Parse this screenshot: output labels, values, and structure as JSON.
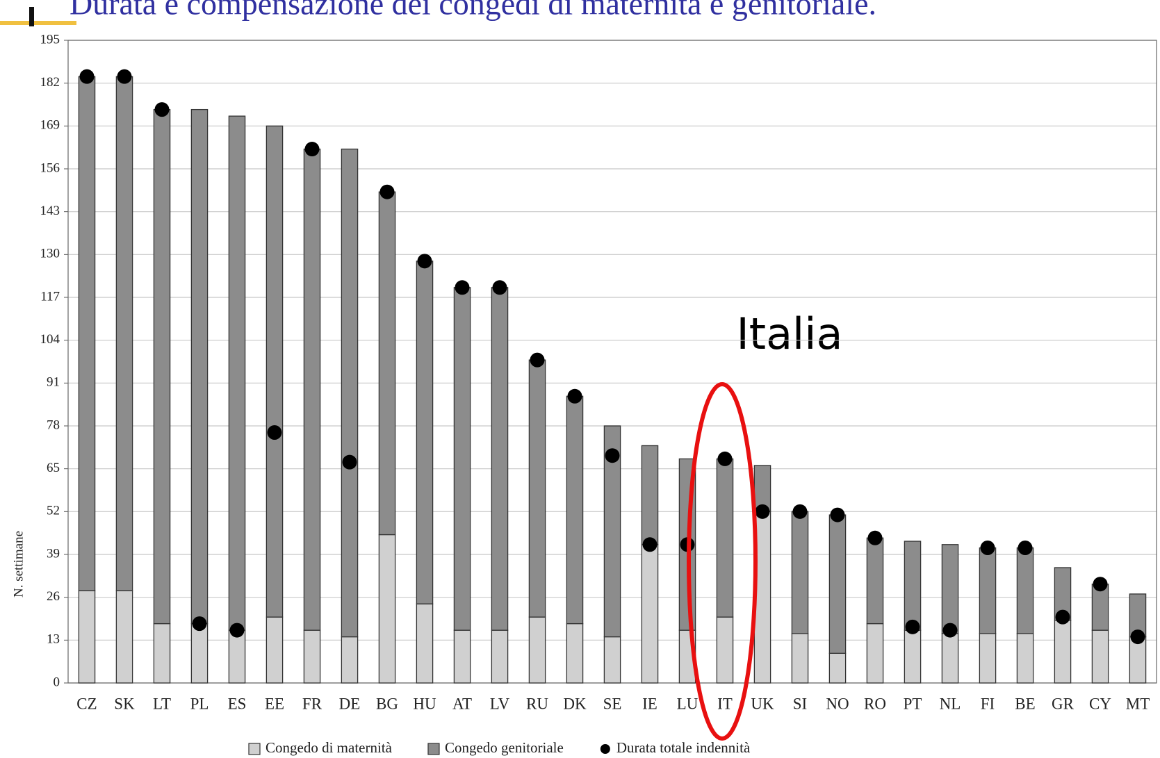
{
  "chart_data": {
    "type": "bar",
    "stacked": true,
    "title": "Durata e compensazione dei congedi di maternità e genitoriale.",
    "y_label": "N. settimane",
    "annotation": "Italia",
    "categories": [
      "CZ",
      "SK",
      "LT",
      "PL",
      "ES",
      "EE",
      "FR",
      "DE",
      "BG",
      "HU",
      "AT",
      "LV",
      "RU",
      "DK",
      "SE",
      "IE",
      "LU",
      "IT",
      "UK",
      "SI",
      "NO",
      "RO",
      "PT",
      "NL",
      "FI",
      "BE",
      "GR",
      "CY",
      "MT"
    ],
    "series": [
      {
        "name": "Congedo di maternità",
        "color": "#d0d0d0",
        "values": [
          28,
          28,
          18,
          18,
          16,
          20,
          16,
          14,
          45,
          24,
          16,
          16,
          20,
          18,
          14,
          42,
          16,
          20,
          52,
          15,
          9,
          18,
          16,
          15,
          15,
          15,
          19,
          16,
          14
        ]
      },
      {
        "name": "Congedo genitoriale",
        "color": "#8c8c8c",
        "values": [
          156,
          156,
          156,
          156,
          156,
          149,
          146,
          148,
          104,
          104,
          104,
          104,
          78,
          69,
          64,
          30,
          52,
          48,
          14,
          37,
          42,
          26,
          27,
          27,
          26,
          26,
          16,
          14,
          13
        ]
      },
      {
        "name": "Durata totale indennità",
        "color": "#000000",
        "type": "dot",
        "values": [
          184,
          184,
          174,
          18,
          16,
          76,
          162,
          67,
          149,
          128,
          120,
          120,
          98,
          87,
          69,
          42,
          42,
          68,
          52,
          52,
          51,
          44,
          17,
          16,
          41,
          41,
          20,
          30,
          14
        ]
      }
    ],
    "ylim": [
      0,
      195
    ],
    "yticks": [
      0,
      13,
      26,
      39,
      52,
      65,
      78,
      91,
      104,
      117,
      130,
      143,
      156,
      169,
      182,
      195
    ],
    "grid": true
  }
}
